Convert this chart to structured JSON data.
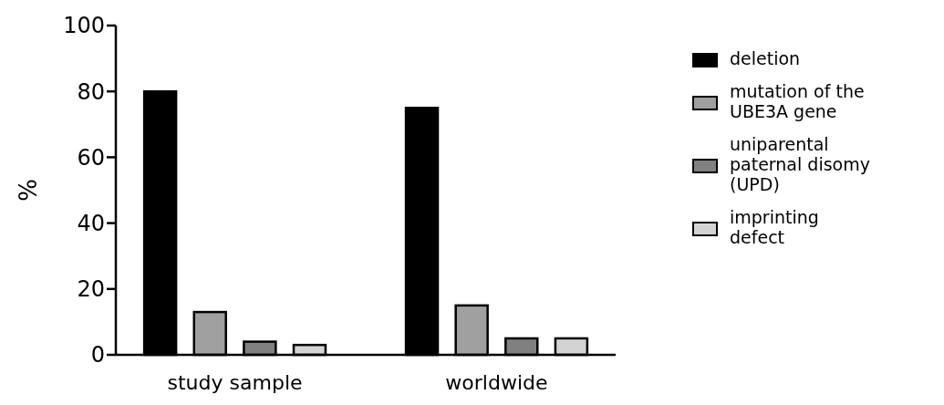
{
  "chart_data": {
    "type": "bar",
    "ylabel": "%",
    "categories": [
      "study sample",
      "worldwide"
    ],
    "series": [
      {
        "name": "deletion",
        "color": "#000000",
        "values": [
          80,
          75
        ]
      },
      {
        "name": "mutation of the UBE3A gene",
        "color": "#a0a0a0",
        "values": [
          13,
          15
        ]
      },
      {
        "name": "uniparental paternal disomy (UPD)",
        "color": "#808080",
        "values": [
          4,
          5
        ]
      },
      {
        "name": "imprinting defect",
        "color": "#d3d3d3",
        "values": [
          3,
          5
        ]
      }
    ],
    "ylim": [
      0,
      100
    ],
    "yticks": [
      0,
      20,
      40,
      60,
      80,
      100
    ],
    "legend": "right"
  }
}
